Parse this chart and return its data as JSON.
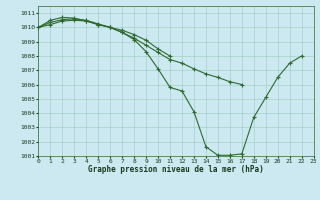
{
  "background_color": "#cce8f0",
  "grid_color": "#99ccbb",
  "line_color": "#2d6a2d",
  "xlabel": "Graphe pression niveau de la mer (hPa)",
  "xlim": [
    0,
    23
  ],
  "ylim": [
    1001,
    1011.5
  ],
  "yticks": [
    1001,
    1002,
    1003,
    1004,
    1005,
    1006,
    1007,
    1008,
    1009,
    1010,
    1011
  ],
  "xticks": [
    0,
    1,
    2,
    3,
    4,
    5,
    6,
    7,
    8,
    9,
    10,
    11,
    12,
    13,
    14,
    15,
    16,
    17,
    18,
    19,
    20,
    21,
    22,
    23
  ],
  "series": [
    [
      1010.0,
      1010.35,
      1010.55,
      1010.6,
      1010.5,
      1010.25,
      1010.0,
      1009.65,
      1009.15,
      1008.3,
      1007.1,
      1005.8,
      1005.55,
      1004.1,
      1001.65,
      1001.05,
      1001.05,
      1001.15,
      1003.7,
      1005.1,
      1006.5,
      1007.5,
      1008.0,
      null
    ],
    [
      1010.0,
      1010.5,
      1010.7,
      1010.65,
      1010.45,
      1010.2,
      1010.0,
      1009.8,
      1009.5,
      1009.1,
      1008.5,
      1008.0,
      null,
      null,
      null,
      null,
      null,
      null,
      null,
      null,
      null,
      null,
      null,
      null
    ],
    [
      1010.0,
      1010.2,
      1010.45,
      1010.5,
      1010.45,
      1010.2,
      1010.0,
      1009.65,
      1009.25,
      1008.75,
      1008.25,
      1007.75,
      1007.5,
      1007.1,
      1006.75,
      1006.5,
      1006.2,
      1006.0,
      null,
      null,
      null,
      null,
      null,
      null
    ]
  ],
  "figsize": [
    3.2,
    2.0
  ],
  "dpi": 100,
  "tick_fontsize": 4.5,
  "xlabel_fontsize": 5.5,
  "linewidth": 0.8,
  "markersize": 2.5
}
